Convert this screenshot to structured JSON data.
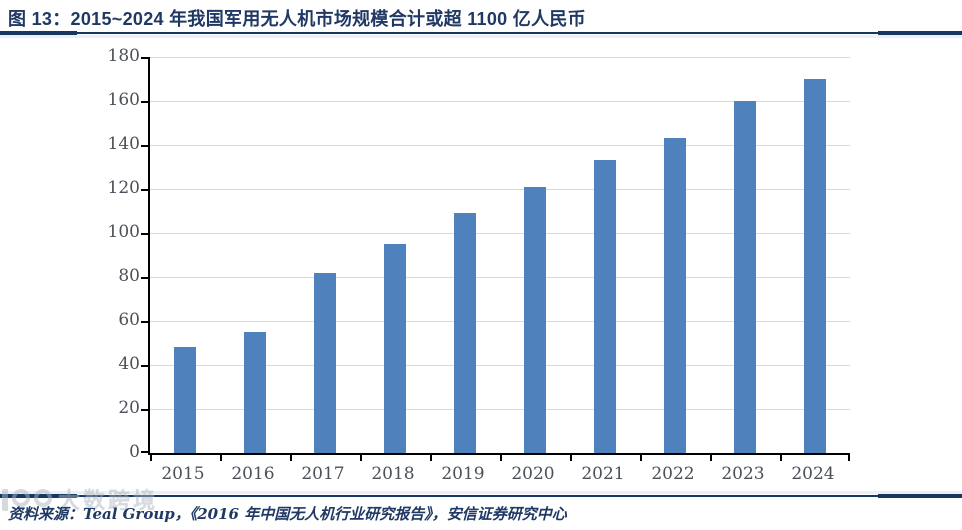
{
  "header": {
    "title": "图 13：2015~2024 年我国军用无人机市场规模合计或超 1100 亿人民币"
  },
  "chart_data": {
    "type": "bar",
    "title": "2015~2024 年我国军用无人机市场规模合计或超 1100 亿人民币",
    "categories": [
      "2015",
      "2016",
      "2017",
      "2018",
      "2019",
      "2020",
      "2021",
      "2022",
      "2023",
      "2024"
    ],
    "values": [
      48,
      55,
      82,
      95,
      109,
      121,
      133,
      143,
      160,
      170
    ],
    "xlabel": "",
    "ylabel": "",
    "ylim": [
      0,
      180
    ],
    "ytick_step": 20,
    "grid": true,
    "legend": "none",
    "bar_color": "#4f81bd"
  },
  "footer": {
    "source": "资料来源：Teal Group，《2016 年中国无人机行业研究报告》，安信证券研究中心"
  },
  "watermark": {
    "text": "大数跨境"
  },
  "colors": {
    "title_navy": "#1f3864",
    "divider_navy": "#17375e",
    "bar_blue": "#4f81bd",
    "gridline_gray": "#d9d9d9",
    "axis_black": "#000000",
    "tick_label_gray": "#4b5158",
    "watermark_gray": "#aeb6c0"
  }
}
